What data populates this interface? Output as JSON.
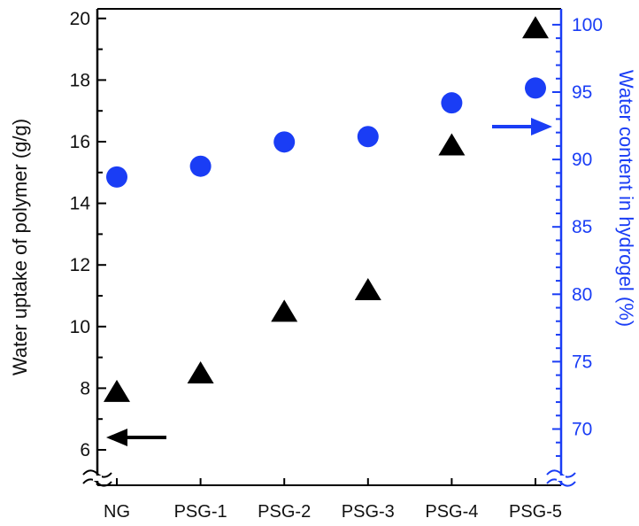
{
  "chart_data": {
    "type": "scatter",
    "categories": [
      "NG",
      "PSG-1",
      "PSG-2",
      "PSG-3",
      "PSG-4",
      "PSG-5"
    ],
    "series": [
      {
        "axis": "left",
        "marker": "triangle",
        "color": "#000000",
        "values": [
          7.9,
          8.5,
          10.5,
          11.2,
          15.9,
          19.7
        ]
      },
      {
        "axis": "right",
        "marker": "circle",
        "color": "#1a3df5",
        "values": [
          88.7,
          89.5,
          91.3,
          91.7,
          94.2,
          95.3
        ]
      }
    ],
    "ylabel": "Water uptake of polymer (g/g)",
    "y2label": "Water content in hydrogel (%)",
    "ylim": [
      6,
      20
    ],
    "yticks": [
      "6",
      "8",
      "10",
      "12",
      "14",
      "16",
      "18",
      "20"
    ],
    "y2lim": [
      70,
      100
    ],
    "y2ticks": [
      "70",
      "75",
      "80",
      "85",
      "90",
      "95",
      "100"
    ],
    "axis_break": true,
    "grid": false,
    "colors": {
      "left_axis": "#000000",
      "right_axis": "#1a3df5"
    }
  }
}
